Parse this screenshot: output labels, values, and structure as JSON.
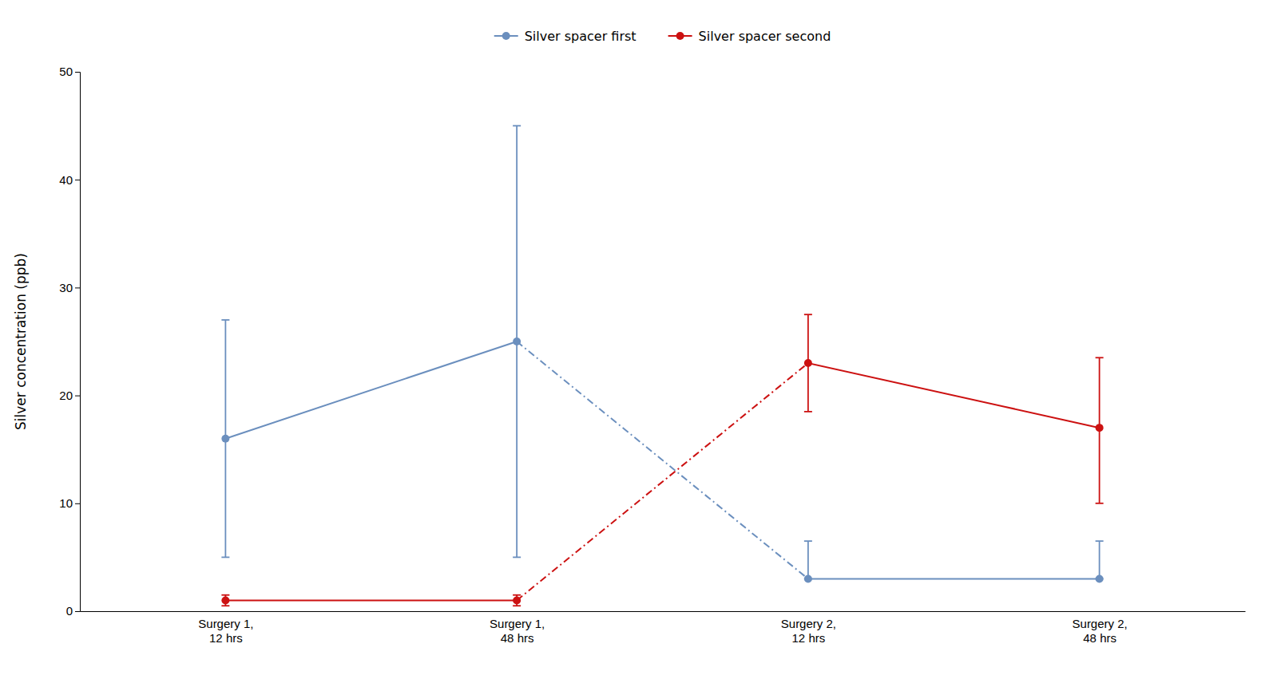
{
  "chart_data": {
    "type": "line",
    "ylabel": "Silver concentration (ppb)",
    "categories": [
      "Surgery 1,\n12 hrs",
      "Surgery 1,\n48 hrs",
      "Surgery 2,\n12 hrs",
      "Surgery 2,\n48 hrs"
    ],
    "series": [
      {
        "name": "Silver spacer first",
        "color": "#6b8fbe",
        "values": [
          16,
          25,
          3,
          3
        ],
        "error_low": [
          11,
          20,
          0,
          0
        ],
        "error_high": [
          11,
          20,
          3.5,
          3.5
        ]
      },
      {
        "name": "Silver spacer second",
        "color": "#cc1111",
        "values": [
          1,
          1,
          23,
          17
        ],
        "error_low": [
          0.5,
          0.5,
          4.5,
          7
        ],
        "error_high": [
          0.5,
          0.5,
          4.5,
          6.5
        ]
      }
    ],
    "ylim": [
      0,
      50
    ],
    "yticks": [
      0,
      10,
      20,
      30,
      40,
      50
    ],
    "grid": false,
    "legend": "top",
    "marker": "circle"
  }
}
